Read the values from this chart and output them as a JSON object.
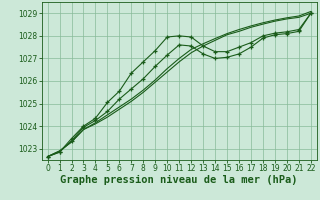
{
  "background_color": "#cce8d8",
  "grid_color": "#88bb99",
  "line_color": "#1a5c1a",
  "marker_color": "#1a5c1a",
  "xlabel": "Graphe pression niveau de la mer (hPa)",
  "xlabel_fontsize": 7.5,
  "xlim": [
    -0.5,
    22.5
  ],
  "ylim": [
    1022.5,
    1029.5
  ],
  "yticks": [
    1023,
    1024,
    1025,
    1026,
    1027,
    1028,
    1029
  ],
  "xticks": [
    0,
    1,
    2,
    3,
    4,
    5,
    6,
    7,
    8,
    9,
    10,
    11,
    12,
    13,
    14,
    15,
    16,
    17,
    18,
    19,
    20,
    21,
    22
  ],
  "series1_x": [
    0,
    1,
    2,
    3,
    4,
    5,
    6,
    7,
    8,
    9,
    10,
    11,
    12,
    13,
    14,
    15,
    16,
    17,
    18,
    19,
    20,
    21,
    22
  ],
  "series1_y": [
    1022.65,
    1022.9,
    1023.3,
    1023.85,
    1024.1,
    1024.4,
    1024.75,
    1025.1,
    1025.5,
    1025.95,
    1026.4,
    1026.85,
    1027.25,
    1027.55,
    1027.8,
    1028.05,
    1028.2,
    1028.38,
    1028.52,
    1028.65,
    1028.75,
    1028.82,
    1029.0
  ],
  "series2_x": [
    0,
    1,
    2,
    3,
    4,
    5,
    6,
    7,
    8,
    9,
    10,
    11,
    12,
    13,
    14,
    15,
    16,
    17,
    18,
    19,
    20,
    21,
    22
  ],
  "series2_y": [
    1022.65,
    1022.9,
    1023.3,
    1023.85,
    1024.15,
    1024.5,
    1024.85,
    1025.2,
    1025.6,
    1026.05,
    1026.55,
    1027.0,
    1027.4,
    1027.65,
    1027.88,
    1028.1,
    1028.28,
    1028.44,
    1028.58,
    1028.7,
    1028.8,
    1028.88,
    1029.08
  ],
  "series3_x": [
    0,
    1,
    2,
    3,
    4,
    5,
    6,
    7,
    8,
    9,
    10,
    11,
    12,
    13,
    14,
    15,
    16,
    17,
    18,
    19,
    20,
    21,
    22
  ],
  "series3_y": [
    1022.65,
    1022.85,
    1023.35,
    1023.95,
    1024.25,
    1024.65,
    1025.2,
    1025.65,
    1026.1,
    1026.65,
    1027.15,
    1027.6,
    1027.55,
    1027.2,
    1027.0,
    1027.05,
    1027.2,
    1027.5,
    1027.9,
    1028.05,
    1028.1,
    1028.2,
    1029.0
  ],
  "series4_x": [
    0,
    1,
    2,
    3,
    4,
    5,
    6,
    7,
    8,
    9,
    10,
    11,
    12,
    13,
    14,
    15,
    16,
    17,
    18,
    19,
    20,
    21,
    22
  ],
  "series4_y": [
    1022.65,
    1022.85,
    1023.45,
    1024.0,
    1024.35,
    1025.05,
    1025.55,
    1026.35,
    1026.85,
    1027.35,
    1027.95,
    1028.0,
    1027.95,
    1027.55,
    1027.3,
    1027.3,
    1027.5,
    1027.7,
    1028.0,
    1028.12,
    1028.18,
    1028.28,
    1029.0
  ]
}
